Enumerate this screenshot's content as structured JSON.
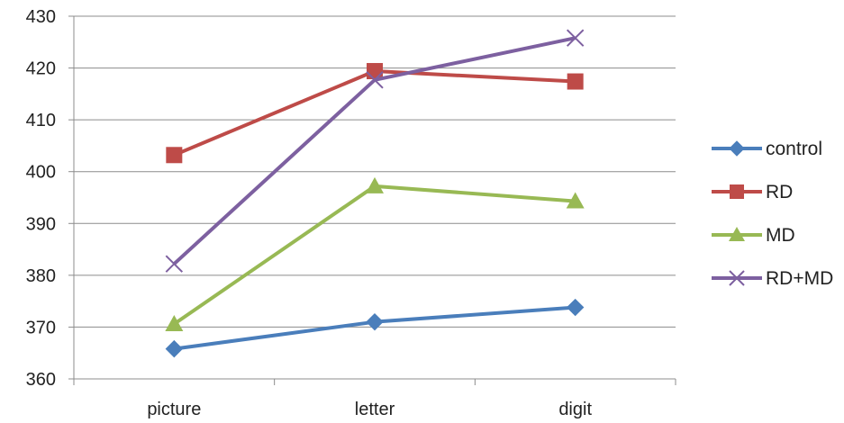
{
  "chart_data": {
    "type": "line",
    "title": "",
    "xlabel": "",
    "ylabel": "",
    "categories": [
      "picture",
      "letter",
      "digit"
    ],
    "ylim": [
      360,
      430
    ],
    "yticks": [
      "430",
      "420",
      "410",
      "400",
      "390",
      "380",
      "370",
      "360"
    ],
    "grid": true,
    "legend_position": "right",
    "series": [
      {
        "name": "control",
        "values": [
          365.8,
          371.0,
          373.8
        ],
        "color": "#4a7ebb",
        "marker": "diamond"
      },
      {
        "name": "RD",
        "values": [
          403.2,
          419.4,
          417.4
        ],
        "color": "#be4b48",
        "marker": "square"
      },
      {
        "name": "MD",
        "values": [
          370.6,
          397.2,
          394.3
        ],
        "color": "#98b954",
        "marker": "triangle"
      },
      {
        "name": "RD+MD",
        "values": [
          382.2,
          417.7,
          425.8
        ],
        "color": "#7d60a0",
        "marker": "x"
      }
    ]
  }
}
